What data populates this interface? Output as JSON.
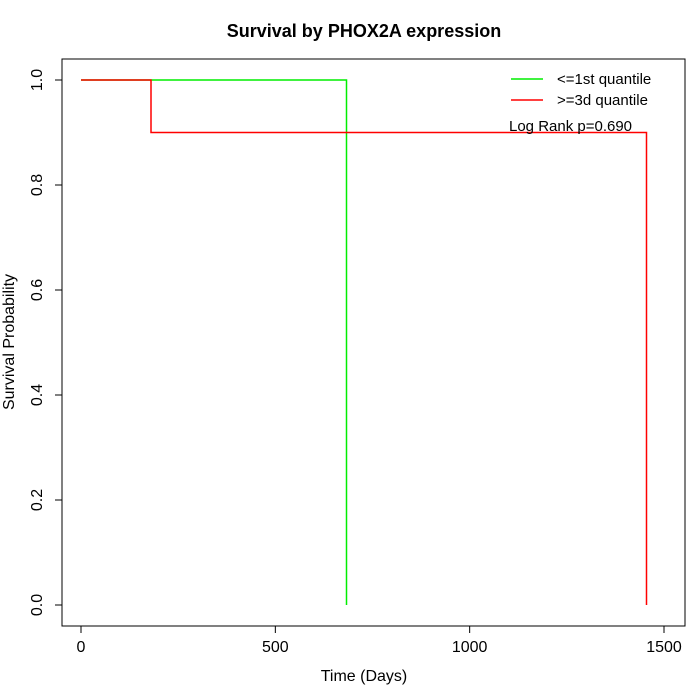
{
  "chart_data": {
    "type": "line",
    "title": "Survival by PHOX2A expression",
    "xlabel": "Time (Days)",
    "ylabel": "Survival Probability",
    "xlim": [
      0,
      1500
    ],
    "ylim": [
      0,
      1
    ],
    "xticks": [
      0,
      500,
      1000,
      1500
    ],
    "xtick_labels": [
      "0",
      "500",
      "1000",
      "1500"
    ],
    "yticks": [
      0,
      0.2,
      0.4,
      0.6,
      0.8,
      1.0
    ],
    "ytick_labels": [
      "0.0",
      "0.2",
      "0.4",
      "0.6",
      "0.8",
      "1.0"
    ],
    "grid": false,
    "legend_position": "top-right",
    "annotation": "Log Rank p=0.690",
    "series": [
      {
        "name": "<=1st quantile",
        "color": "#00ee00",
        "step": true,
        "x": [
          0,
          683,
          683
        ],
        "y": [
          1.0,
          1.0,
          0.0
        ]
      },
      {
        "name": ">=3d quantile",
        "color": "#ff0000",
        "step": true,
        "x": [
          0,
          180,
          180,
          1455,
          1455
        ],
        "y": [
          1.0,
          1.0,
          0.9,
          0.9,
          0.0
        ]
      }
    ]
  }
}
